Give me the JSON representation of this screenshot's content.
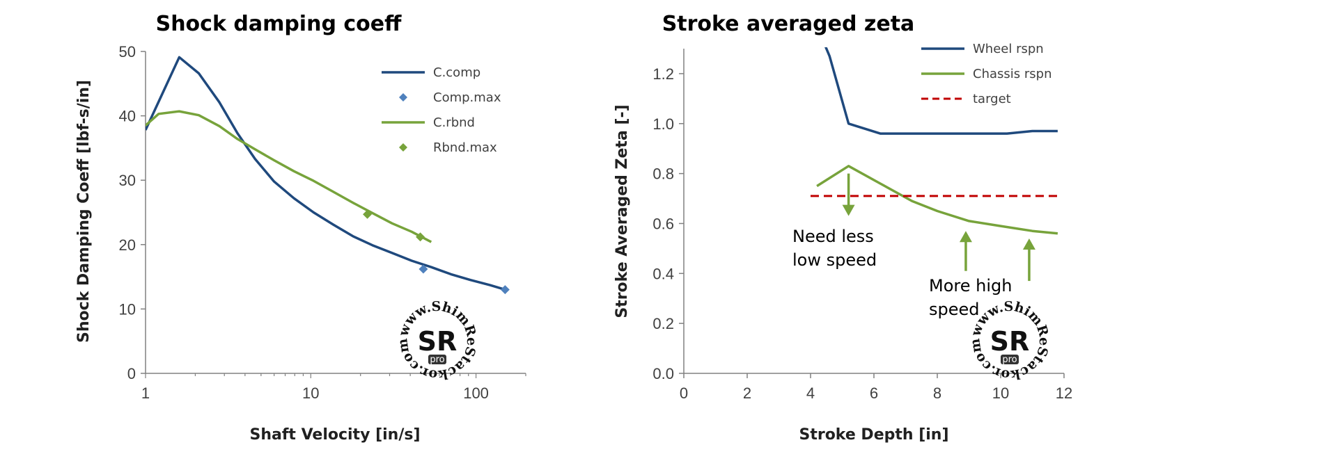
{
  "colors": {
    "blue": "#1f497d",
    "diamond_blue": "#4f81bd",
    "green": "#77a33b",
    "target": "#c00000",
    "axis": "#808080"
  },
  "watermark": {
    "text": "www.ShimReStackor.com",
    "logo": "SR",
    "badge": "pro"
  },
  "chart_data": [
    {
      "type": "line",
      "title": "Shock damping coeff",
      "xlabel": "Shaft Velocity [in/s]",
      "ylabel": "Shock Damping Coeff [lbf-s/in]",
      "xscale": "log",
      "xlim": [
        1,
        200
      ],
      "ylim": [
        0,
        50
      ],
      "xticks": [
        1,
        10,
        100
      ],
      "xtick_labels": [
        "1",
        "10",
        "100"
      ],
      "yticks": [
        0,
        10,
        20,
        30,
        40,
        50
      ],
      "ytick_labels": [
        "0",
        "10",
        "20",
        "30",
        "40",
        "50"
      ],
      "legend_position": "top-right",
      "series": [
        {
          "name": "C.comp",
          "style": "line",
          "color": "#1f497d",
          "x": [
            1,
            1.6,
            2.1,
            2.8,
            3.6,
            4.6,
            6,
            7.9,
            10.4,
            13.7,
            18,
            23.6,
            31,
            40.8,
            53.6,
            70.5,
            92.6,
            121.6,
            150
          ],
          "y": [
            37.8,
            49.1,
            46.6,
            42.1,
            37.3,
            33.3,
            29.8,
            27.2,
            25.0,
            23.1,
            21.3,
            19.9,
            18.7,
            17.5,
            16.5,
            15.4,
            14.5,
            13.7,
            13.0
          ]
        },
        {
          "name": "Comp.max",
          "style": "marker",
          "color": "#4f81bd",
          "x": [
            48,
            150
          ],
          "y": [
            16.2,
            13.0
          ]
        },
        {
          "name": "C.rbnd",
          "style": "line",
          "color": "#77a33b",
          "x": [
            1,
            1.2,
            1.6,
            2.1,
            2.8,
            3.6,
            4.6,
            6,
            7.9,
            10.4,
            13.7,
            18,
            23.6,
            31,
            40.8,
            53.6
          ],
          "y": [
            38.5,
            40.3,
            40.7,
            40.1,
            38.4,
            36.4,
            34.8,
            33.1,
            31.4,
            29.9,
            28.2,
            26.5,
            24.9,
            23.3,
            22.0,
            20.4
          ]
        },
        {
          "name": "Rbnd.max",
          "style": "marker",
          "color": "#77a33b",
          "x": [
            22,
            46
          ],
          "y": [
            24.7,
            21.2
          ]
        }
      ]
    },
    {
      "type": "line",
      "title": "Stroke averaged zeta",
      "xlabel": "Stroke Depth [in]",
      "ylabel": "Stroke Averaged Zeta [-]",
      "xlim": [
        0,
        12
      ],
      "ylim": [
        0,
        1.3
      ],
      "xticks": [
        0,
        2,
        4,
        6,
        8,
        10,
        12
      ],
      "xtick_labels": [
        "0",
        "2",
        "4",
        "6",
        "8",
        "10",
        "12"
      ],
      "yticks": [
        0,
        0.2,
        0.4,
        0.6,
        0.8,
        1.0,
        1.2
      ],
      "ytick_labels": [
        "0.0",
        "0.2",
        "0.4",
        "0.6",
        "0.8",
        "1.0",
        "1.2"
      ],
      "legend_position": "top-right",
      "series": [
        {
          "name": "Wheel rspn",
          "style": "line",
          "color": "#1f497d",
          "x": [
            4.3,
            4.6,
            5.2,
            6.2,
            7.2,
            8.2,
            9.2,
            10.2,
            11.0,
            11.8
          ],
          "y": [
            1.36,
            1.27,
            1.0,
            0.96,
            0.96,
            0.96,
            0.96,
            0.96,
            0.97,
            0.97
          ]
        },
        {
          "name": "Chassis rspn",
          "style": "line",
          "color": "#77a33b",
          "x": [
            4.2,
            5.2,
            6.2,
            7.2,
            8.0,
            9.0,
            10.0,
            11.0,
            11.8
          ],
          "y": [
            0.75,
            0.83,
            0.76,
            0.69,
            0.65,
            0.61,
            0.59,
            0.57,
            0.56
          ]
        },
        {
          "name": "target",
          "style": "dashed",
          "color": "#c00000",
          "x": [
            4.0,
            11.8
          ],
          "y": [
            0.71,
            0.71
          ]
        }
      ],
      "annotations": [
        {
          "lines": [
            "Need less",
            "low speed"
          ],
          "arrow": "down",
          "arrow_x": 5.2,
          "arrow_from": 0.8,
          "arrow_to": 0.63
        },
        {
          "lines": [
            "More high",
            "speed"
          ],
          "arrow": "up",
          "arrow_x": 8.9,
          "arrow_from": 0.41,
          "arrow_to": 0.57
        },
        {
          "lines": [],
          "arrow": "up",
          "arrow_x": 10.9,
          "arrow_from": 0.37,
          "arrow_to": 0.54
        }
      ]
    }
  ]
}
